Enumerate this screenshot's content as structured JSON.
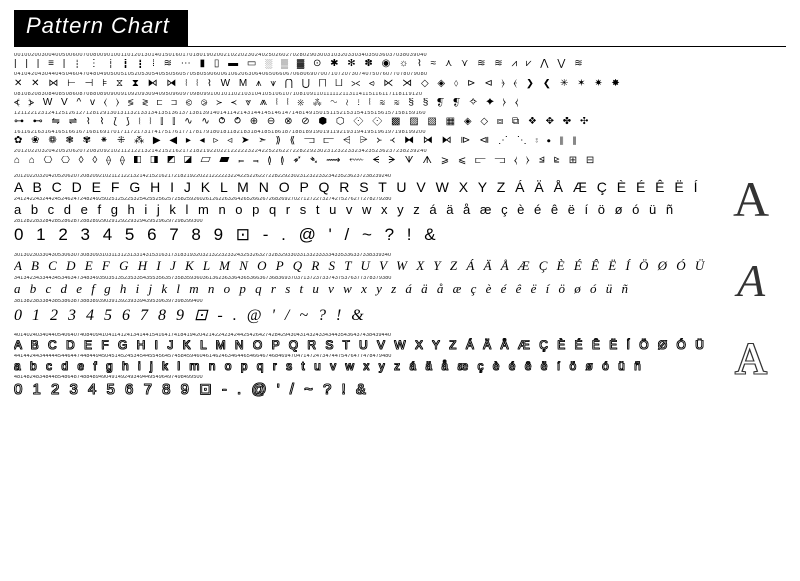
{
  "header": {
    "title": "Pattern Chart"
  },
  "stitch_block": {
    "rows": [
      {
        "start": 1,
        "sym": "| | | ≡ | ┊ ⋮ ┆ ┇ ┋ ⁞ ≋ ⋯ ▮ ▯ ▬ ▭ ░ ▒ ▓ ⊙ ✱ ✻ ✽ ◉ ☼ ⌇ ≈ ⋏ ⋎ ≋ ≋ ⩘ ⩗ ⋀ ⋁ ≋"
      },
      {
        "start": 41,
        "sym": "✕ ✕ ⋈ ⊢ ⊣ ⊧ ⧖ ⧗ ⧑ ⧒ ⦚ ⦚ ⌇ W M ⩚ ⩛ ⋂ ⋃ ⨅ ⨆ ⪥ ⪦ ⋉ ⋊ ◇ ◈ ⬨ ⊳ ⊲ ⦒ ⦑ ❯ ❮ ✳ ✶ ✷ ✸"
      },
      {
        "start": 81,
        "sym": "⦓ ⦔ W V ^ v ⟨ ⟩ ≶ ≷ ⊏ ⊐ ⧀ ⧁ ≻ ≺ ⩔ ⩕ ⦚ ⦚ ※ ⁂ ∿ ≀ ⦙ ⦚ ≋ ≋ § § ❡ ❡ ✧ ✦ ⧽ ⧼"
      },
      {
        "start": 121,
        "sym": "⊶ ⊷ ⇋ ⇌ ⌇ ⌇ ⟅ ⟆ ⧙ ⧘ ⫿ ⫿ ∿ ∿ ⥀ ⥁ ⊕ ⊖ ⊗ ⊘ ⬢ ⬡ ⟐ ⟐ ▩ ▨ ▧ ▦ ◈ ◇ ⧈ ⧉ ❖ ✥ ✤ ✣"
      },
      {
        "start": 161,
        "sym": "✿ ❀ ❁ ❃ ✾ ⁕ ⁜ ⁂ ▶ ◀ ▸ ◂ ▹ ◃ ➤ ➣ ⟫ ⟪ ⫎ ⫍ ⩤ ⩥ ᚛ ᚜ ⧓ ⧒ ⧑ ⧐ ⧏ ⋰ ⋱ ⦂ ⦁ ⦀ ⫴"
      },
      {
        "start": null,
        "sym": "⌂ ⌂ ⎔ ⎔ ◊ ◊ ⟠ ⟠ ◧ ◨ ◩ ◪ ▱ ▰ ⫭ ⫬ ≬ ≬ ➶ ➴ ⟿ ⬳ ᗕ ᗒ ᗐ ᗑ ⩾ ⩽ ⫍ ⫎ ⧼ ⧽ ⊴ ⊵ ⊞ ⊟"
      }
    ]
  },
  "font_blocks": [
    {
      "id": "block2",
      "start": 201,
      "big": "A",
      "big_class": "sans",
      "rows": [
        "A B C D E F G H I J K L M N O P Q R S T U V W X Y Z Á Ä Å Æ Ç È É Ê Ë Í Ö Ø Ó Ü Ñ",
        "a b c d e f g h i j k l m n o p q r s t u v w x y z á ä å æ ç è é ê ë í ö ø ó ü ñ",
        "0 1 2 3 4 5 6 7 8 9 ⊡ - . @ ' / ~ ? ! &"
      ]
    },
    {
      "id": "block3",
      "start": 301,
      "big": "A",
      "big_class": "script",
      "rows": [
        "A B C D E F G H I J K L M N O P Q R S T U V W X Y Z Á Ä Å Æ Ç È É Ê Ë Í Ö Ø Ó Ü Ñ",
        "a b c d e f g h i j k l m n o p q r s t u v w x y z á ä å æ ç è é ê ë í ö ø ó ü ñ",
        "0 1 2 3 4 5 6 7 8 9 ⊡ - . @ ' / ~ ? ! &"
      ]
    },
    {
      "id": "block4",
      "start": 401,
      "big": "A",
      "big_class": "outline",
      "rows": [
        "A B C D E F G H I J K L M N O P Q R S T U V W X Y Z Á Ä Å Æ Ç È É Ê Ë Í Ö Ø Ó Ü Ñ",
        "a b c d e f g h i j k l m n o p q r s t u v w x y z á ä å æ ç è é ê ë í ö ø ó ü ñ",
        "0 1 2 3 4 5 6 7 8 9 ⊡ - . @ ' / ~ ? ! &"
      ]
    }
  ]
}
